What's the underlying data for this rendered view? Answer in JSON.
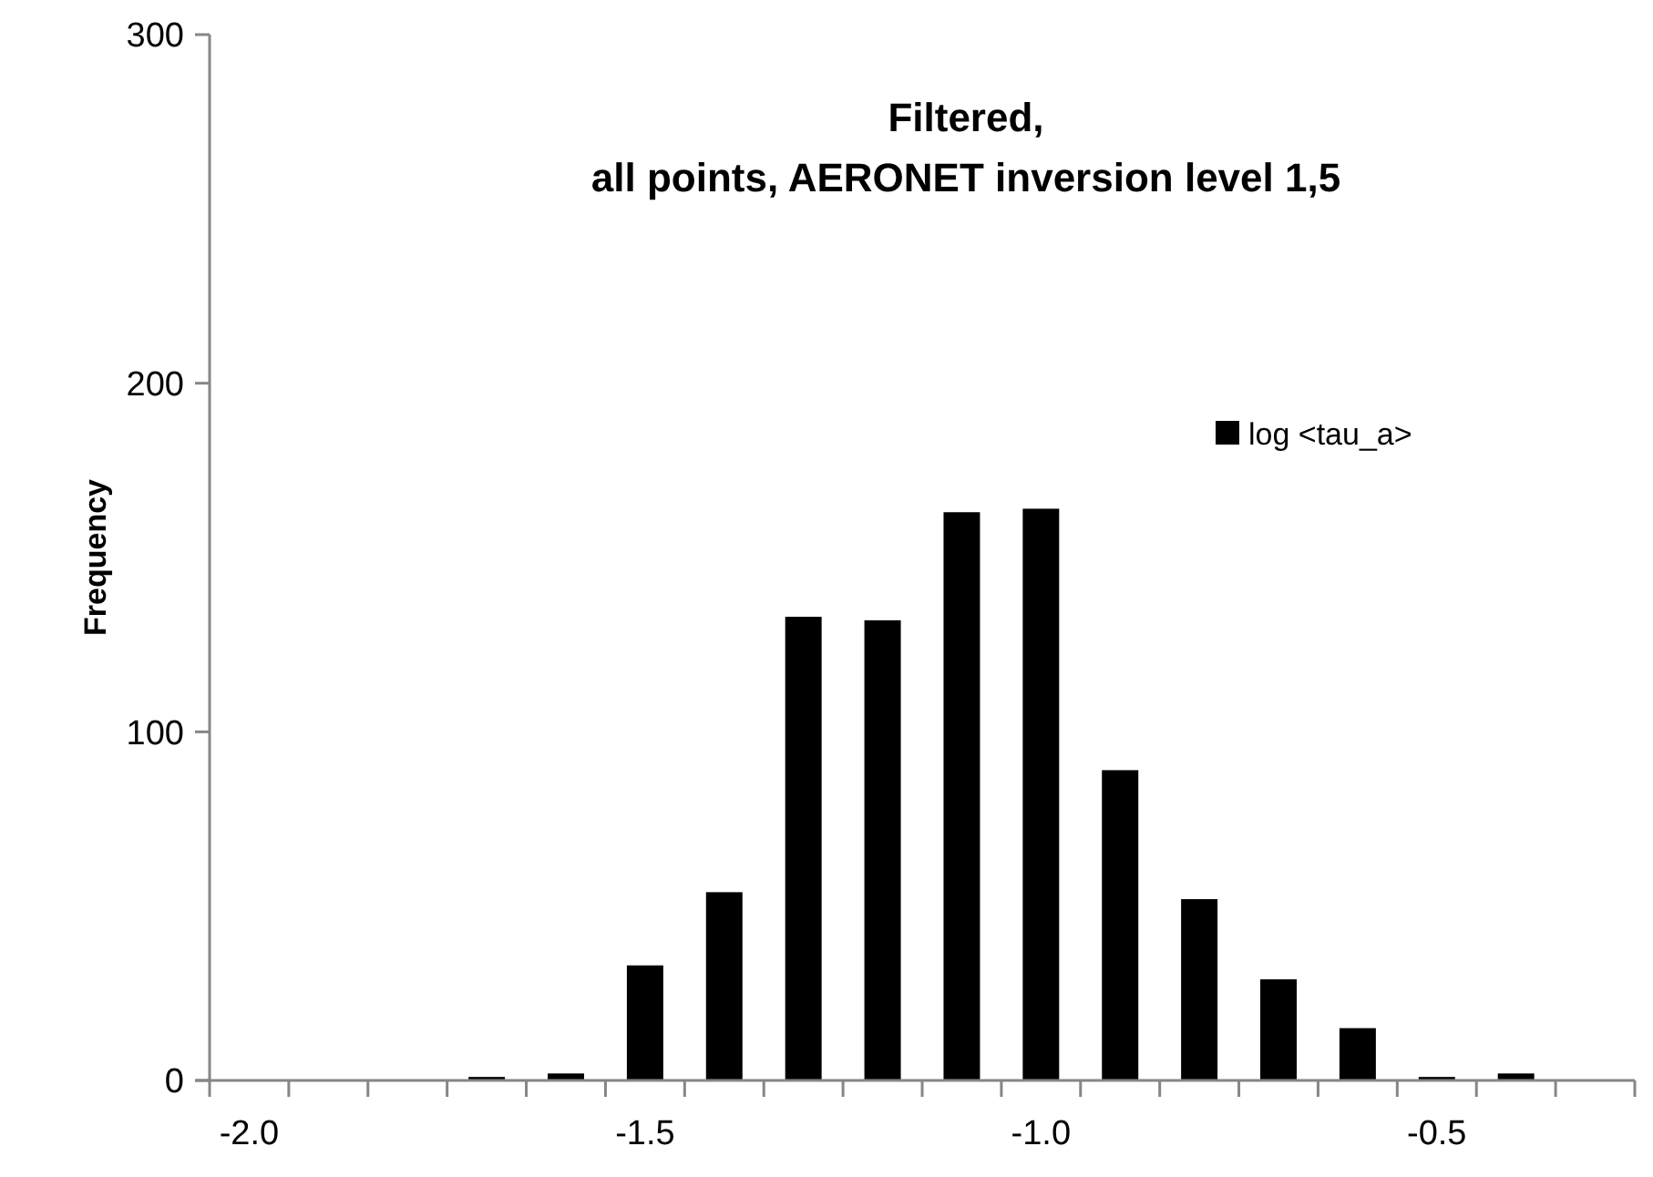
{
  "chart_data": {
    "type": "bar",
    "title": "Filtered,\nall points, AERONET inversion level 1,5",
    "ylabel": "Frequency",
    "categories": [
      "-2.0",
      null,
      null,
      null,
      null,
      "-1.5",
      null,
      null,
      null,
      null,
      "-1.0",
      null,
      null,
      null,
      null,
      "-0.5",
      null,
      null
    ],
    "series": [
      {
        "name": "log <tau_a>",
        "color": "#000000",
        "values": [
          0,
          0,
          0,
          1,
          2,
          33,
          54,
          133,
          132,
          163,
          164,
          89,
          52,
          29,
          15,
          1,
          2,
          0
        ]
      }
    ],
    "ylim": [
      0,
      300
    ],
    "yticks": [
      0,
      100,
      200,
      300
    ],
    "grid": false,
    "legend": "top right"
  }
}
